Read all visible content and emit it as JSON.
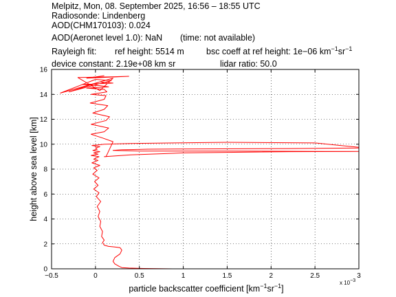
{
  "header": {
    "line1": "Melpitz, Mon, 08. September 2025, 16:56 – 18:55 UTC",
    "line2": "Radiosonde: Lindenberg",
    "line3": "AOD(CHM170103): 0.024",
    "line4_a": "AOD(Aeronet level 1.0): NaN",
    "line4_b": "(time: not available)",
    "line5_a": "Rayleigh fit:",
    "line5_b": "ref height: 5514 m",
    "line5_c": "bsc coeff at ref height: 1e−06 km",
    "line5_c_sup1": "−1",
    "line5_c_mid": "sr",
    "line5_c_sup2": "−1",
    "line6_a": "device constant: 2.19e+08 km sr",
    "line6_b": "lidar ratio: 50.0"
  },
  "chart_data": {
    "type": "line",
    "xlabel": "particle backscatter coefficient [km",
    "xlabel_sup1": "−1",
    "xlabel_mid": "sr",
    "xlabel_sup2": "−1",
    "xlabel_end": "]",
    "ylabel": "height above sea level [km]",
    "x_exponent_label": "x 10",
    "x_exponent_power": "−3",
    "xlim": [
      -0.5,
      3.0
    ],
    "ylim": [
      0,
      16
    ],
    "xticks": [
      -0.5,
      0,
      0.5,
      1,
      1.5,
      2,
      2.5,
      3
    ],
    "xtick_labels": [
      "−0.5",
      "0",
      "0.5",
      "1",
      "1.5",
      "2",
      "2.5",
      "3"
    ],
    "yticks": [
      0,
      2,
      4,
      6,
      8,
      10,
      12,
      14,
      16
    ],
    "ytick_labels": [
      "0",
      "2",
      "4",
      "6",
      "8",
      "10",
      "12",
      "14",
      "16"
    ],
    "grid": true,
    "series": [
      {
        "color": "#ff0000",
        "x": [
          0.88,
          0.55,
          0.38,
          0.3,
          0.27,
          0.22,
          0.2,
          0.22,
          0.28,
          0.3,
          0.28,
          0.22,
          0.15,
          0.1,
          0.08,
          0.1,
          0.07,
          0.08,
          0.05,
          0.06,
          0.03,
          0.05,
          0.02,
          0.06,
          0.01,
          0.04,
          -0.02,
          0.03,
          -0.01,
          0.04,
          -0.03,
          0.02,
          -0.02,
          0.05,
          -0.04,
          0.03,
          -0.02,
          0.04,
          -0.05,
          0.03,
          -0.02,
          0.05,
          -0.03,
          0.02,
          0.0,
          0.05,
          -0.04,
          0.03,
          0.1,
          0.4,
          0.9,
          1.5,
          2.5,
          3.0,
          3.0,
          2.2,
          1.2,
          0.6,
          0.3,
          0.2,
          0.5,
          1.5,
          2.6,
          3.0,
          2.2,
          1.0,
          0.4,
          0.2,
          0.1,
          0.12,
          0.2,
          0.08,
          -0.05,
          0.1,
          0.15,
          -0.05,
          0.12,
          0.16,
          -0.03,
          0.1,
          0.14,
          -0.06,
          0.1,
          0.12,
          -0.05,
          0.13,
          0.1,
          -0.1,
          0.15,
          0.05,
          -0.15,
          0.2,
          0.05,
          -0.3,
          0.18,
          0.0,
          -0.4,
          0.2,
          0.05,
          -0.2,
          0.15,
          0.38,
          -0.1,
          0.1
        ],
        "y": [
          0.0,
          0.03,
          0.06,
          0.1,
          0.2,
          0.4,
          0.6,
          0.9,
          1.2,
          1.5,
          1.7,
          1.75,
          1.8,
          1.9,
          2.1,
          2.3,
          2.6,
          3.0,
          3.4,
          3.8,
          4.2,
          4.6,
          5.0,
          5.4,
          5.8,
          6.1,
          6.4,
          6.7,
          7.0,
          7.3,
          7.6,
          7.9,
          8.1,
          8.3,
          8.5,
          8.7,
          8.8,
          9.0,
          9.1,
          9.2,
          9.3,
          9.4,
          9.5,
          9.6,
          9.7,
          9.8,
          9.9,
          9.95,
          10.0,
          10.05,
          10.1,
          10.15,
          10.1,
          9.75,
          9.7,
          9.65,
          9.62,
          9.6,
          9.55,
          9.5,
          9.45,
          9.45,
          9.42,
          9.42,
          9.4,
          9.3,
          9.15,
          9.05,
          9.0,
          9.0,
          10.2,
          10.5,
          10.8,
          11.0,
          11.3,
          11.6,
          11.9,
          12.2,
          12.5,
          12.8,
          13.1,
          13.3,
          13.6,
          13.9,
          14.0,
          14.2,
          14.4,
          14.5,
          14.6,
          14.7,
          14.8,
          14.9,
          15.0,
          14.2,
          15.1,
          15.2,
          14.1,
          15.3,
          14.3,
          15.35,
          15.4,
          15.45,
          15.3,
          15.5
        ]
      }
    ]
  }
}
